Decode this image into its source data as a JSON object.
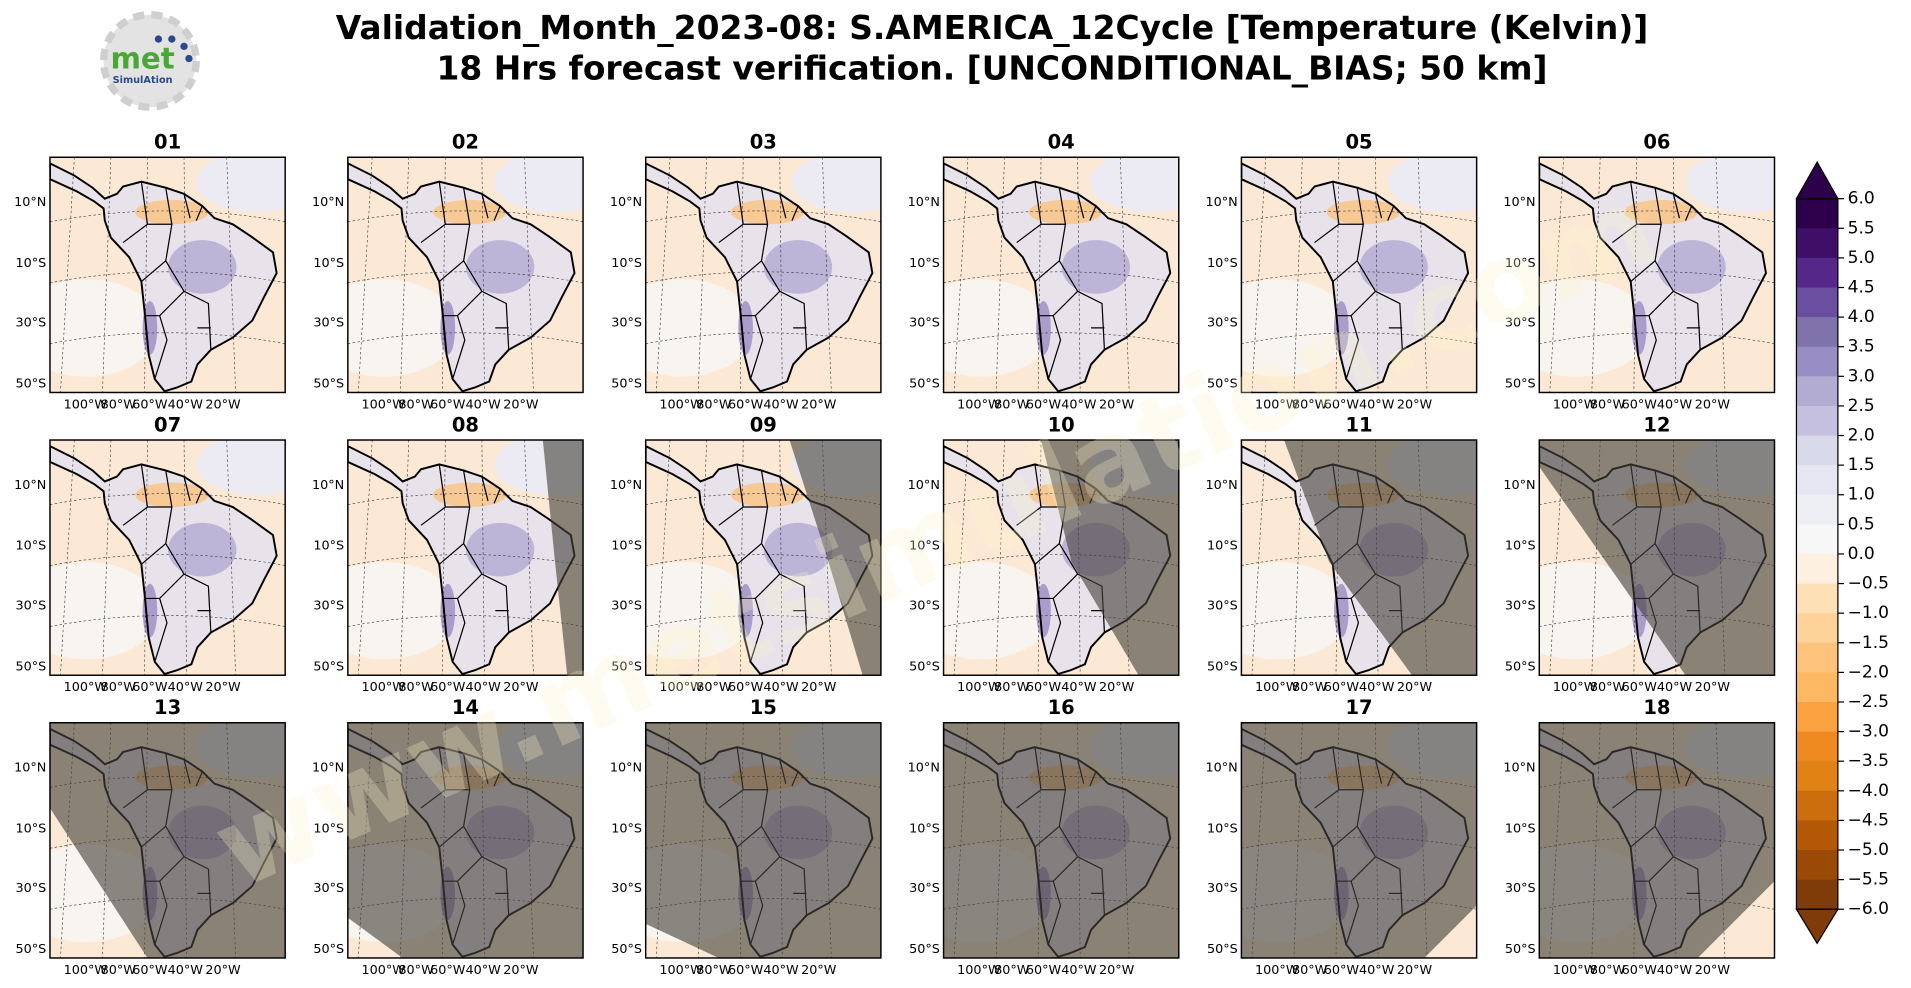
{
  "title": [
    "Validation_Month_2023-08: S.AMERICA_12Cycle [Temperature (Kelvin)]",
    "18 Hrs forecast verification. [UNCONDITIONAL_BIAS; 50 km]"
  ],
  "logo": {
    "name": "met",
    "subname": "SimulAtion"
  },
  "watermark": "www.metsimulation.com",
  "panels": [
    "01",
    "02",
    "03",
    "04",
    "05",
    "06",
    "07",
    "08",
    "09",
    "10",
    "11",
    "12",
    "13",
    "14",
    "15",
    "16",
    "17",
    "18"
  ],
  "lat_labels": [
    "10°N",
    "10°S",
    "30°S",
    "50°S"
  ],
  "lon_labels": [
    "100°W",
    "80°W",
    "60°W",
    "40°W",
    "20°W"
  ],
  "colorbar": {
    "lim": [
      -6,
      6
    ],
    "ticks": [
      {
        "value": 6,
        "label": "6.0"
      },
      5.5,
      {
        "value": 5,
        "label": "5.0"
      },
      4.5,
      {
        "value": 4,
        "label": "4.0"
      },
      3.5,
      {
        "value": 3,
        "label": "3.0"
      },
      2.5,
      {
        "value": 2,
        "label": "2.0"
      },
      1.5,
      {
        "value": 1,
        "label": "1.0"
      },
      0.5,
      {
        "value": 0,
        "label": "0.0"
      },
      {
        "value": -0.5,
        "label": "−0.5"
      },
      {
        "value": -1,
        "label": "−1.0"
      },
      {
        "value": -1.5,
        "label": "−1.5"
      },
      {
        "value": -2,
        "label": "−2.0"
      },
      {
        "value": -2.5,
        "label": "−2.5"
      },
      {
        "value": -3,
        "label": "−3.0"
      },
      {
        "value": -3.5,
        "label": "−3.5"
      },
      {
        "value": -4,
        "label": "−4.0"
      },
      {
        "value": -4.5,
        "label": "−4.5"
      },
      {
        "value": -5,
        "label": "−5.0"
      },
      {
        "value": -5.5,
        "label": "−5.5"
      },
      {
        "value": -6,
        "label": "−6.0"
      }
    ],
    "colors": [
      "#2d004b",
      "#3f0f68",
      "#542788",
      "#6a4fa0",
      "#8073ac",
      "#998ec3",
      "#b2abd2",
      "#c5c0df",
      "#d8daeb",
      "#e6e6f2",
      "#eeeef5",
      "#f7f7f7",
      "#fdf0e0",
      "#fee0b6",
      "#fdd39a",
      "#fdc27c",
      "#fdb863",
      "#f9a23f",
      "#ef8a21",
      "#e08214",
      "#cc6e0d",
      "#b35806",
      "#9a4a06",
      "#7f3b08"
    ]
  }
}
